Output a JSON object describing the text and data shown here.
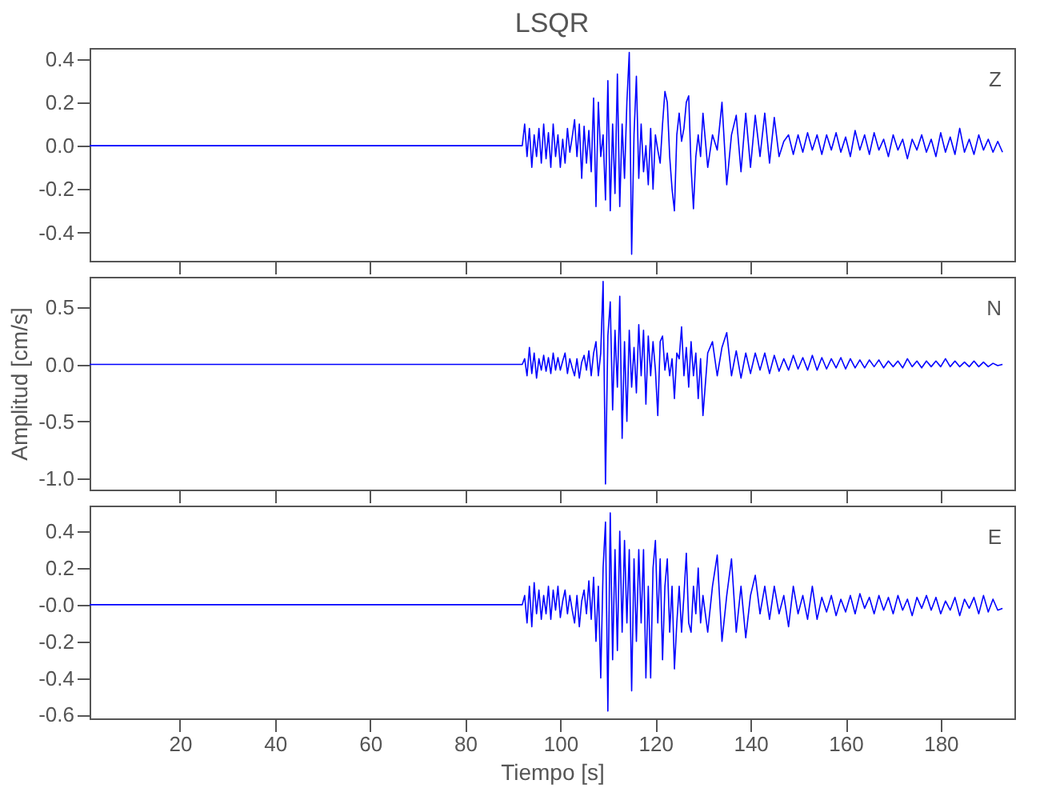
{
  "chart_data": [
    {
      "type": "line",
      "title": "LSQR",
      "annotations": [
        "Z"
      ],
      "tick_labels": "y",
      "xlim": [
        1,
        195.5
      ],
      "xticks": [
        20,
        40,
        60,
        80,
        100,
        120,
        140,
        160,
        180
      ],
      "ylim": [
        -0.53,
        0.45
      ],
      "yticks": [
        {
          "value": -0.4,
          "label": "-0.4"
        },
        {
          "value": -0.2,
          "label": "-0.2"
        },
        {
          "value": 0,
          "label": "0.0"
        },
        {
          "value": 0.2,
          "label": "0.2"
        },
        {
          "value": 0.4,
          "label": "0.4"
        }
      ],
      "x": [
        1,
        30,
        60,
        92,
        92.5,
        93,
        93.5,
        94,
        94.5,
        95,
        95.5,
        96,
        96.5,
        97,
        97.5,
        98,
        98.5,
        99,
        99.5,
        100,
        100.5,
        101,
        101.5,
        102,
        102.5,
        103,
        103.5,
        104,
        104.5,
        105,
        105.5,
        106,
        106.5,
        107,
        107.5,
        108,
        108.5,
        109,
        109.5,
        110,
        110.5,
        111,
        111.5,
        112,
        112.5,
        113,
        113.5,
        114,
        114.5,
        115,
        115.5,
        116,
        116.5,
        117,
        117.5,
        118,
        118.5,
        119,
        119.5,
        120,
        120.5,
        121,
        121.5,
        122,
        122.5,
        123,
        123.5,
        124,
        124.5,
        125,
        125.5,
        126,
        126.5,
        127,
        127.5,
        128,
        128.5,
        129,
        129.5,
        130,
        131,
        132,
        133,
        134,
        135,
        136,
        137,
        138,
        139,
        140,
        141,
        142,
        143,
        144,
        145,
        146,
        147,
        148,
        149,
        150,
        151,
        152,
        153,
        154,
        155,
        156,
        157,
        158,
        159,
        160,
        161,
        162,
        163,
        164,
        165,
        166,
        167,
        168,
        169,
        170,
        171,
        172,
        173,
        174,
        175,
        176,
        177,
        178,
        179,
        180,
        181,
        182,
        183,
        184,
        185,
        186,
        187,
        188,
        189,
        190,
        191,
        192,
        193
      ],
      "series": [
        {
          "color": "#0000ff",
          "values": [
            0,
            0,
            0,
            0,
            0.1,
            -0.05,
            0.08,
            -0.1,
            0.05,
            -0.05,
            0.08,
            -0.08,
            0.1,
            -0.06,
            0.06,
            -0.1,
            0.1,
            -0.05,
            0.05,
            -0.1,
            0.03,
            -0.08,
            0.08,
            -0.03,
            0.04,
            0.12,
            -0.05,
            0.1,
            -0.15,
            0.09,
            -0.08,
            0.07,
            -0.12,
            0.22,
            -0.28,
            0.2,
            -0.05,
            0.05,
            -0.25,
            0.3,
            -0.3,
            0.1,
            -0.22,
            0.33,
            -0.28,
            0.1,
            -0.15,
            0.2,
            0.43,
            -0.5,
            0.05,
            0.32,
            -0.15,
            0.1,
            -0.12,
            0,
            -0.18,
            0.08,
            -0.2,
            0.05,
            -0.02,
            -0.08,
            0.1,
            0.25,
            0.2,
            -0.05,
            -0.2,
            -0.3,
            0.05,
            0.15,
            0.02,
            0.08,
            0.2,
            0.23,
            -0.1,
            -0.29,
            -0.05,
            0.05,
            -0.05,
            0.15,
            -0.1,
            0.05,
            -0.02,
            0.2,
            -0.18,
            0.05,
            0.14,
            -0.12,
            0.15,
            -0.1,
            0.14,
            -0.05,
            0.15,
            -0.08,
            0.13,
            -0.05,
            0.02,
            0.05,
            -0.04,
            0.05,
            -0.03,
            0.06,
            -0.02,
            0.05,
            -0.04,
            0.05,
            -0.02,
            0.06,
            -0.03,
            0.04,
            -0.05,
            0.07,
            -0.02,
            0.05,
            -0.04,
            0.06,
            -0.02,
            0.03,
            -0.05,
            0.05,
            -0.02,
            0.03,
            -0.06,
            0.03,
            -0.02,
            0.05,
            -0.03,
            0.03,
            -0.05,
            0.06,
            -0.03,
            0.04,
            -0.04,
            0.08,
            -0.03,
            0.03,
            -0.04,
            0.05,
            -0.02,
            0.03,
            -0.03,
            0.02,
            -0.03
          ]
        }
      ]
    },
    {
      "type": "line",
      "ylabel": "Amplitud [cm/s]",
      "annotations": [
        "N"
      ],
      "tick_labels": "y",
      "xlim": [
        1,
        195.5
      ],
      "xticks": [
        20,
        40,
        60,
        80,
        100,
        120,
        140,
        160,
        180
      ],
      "ylim": [
        -1.1,
        0.77
      ],
      "yticks": [
        {
          "value": -1,
          "label": "-1.0"
        },
        {
          "value": -0.5,
          "label": "-0.5"
        },
        {
          "value": 0,
          "label": "0.0"
        },
        {
          "value": 0.5,
          "label": "0.5"
        }
      ],
      "x": [
        1,
        30,
        60,
        92,
        92.5,
        93,
        93.5,
        94,
        94.5,
        95,
        95.5,
        96,
        96.5,
        97,
        97.5,
        98,
        98.5,
        99,
        99.5,
        100,
        100.5,
        101,
        101.5,
        102,
        102.5,
        103,
        103.5,
        104,
        104.5,
        105,
        105.5,
        106,
        106.5,
        107,
        107.5,
        108,
        108.5,
        109,
        109.5,
        110,
        110.5,
        111,
        111.5,
        112,
        112.5,
        113,
        113.5,
        114,
        114.5,
        115,
        115.5,
        116,
        116.5,
        117,
        117.5,
        118,
        118.5,
        119,
        119.5,
        120,
        120.5,
        121,
        121.5,
        122,
        122.5,
        123,
        123.5,
        124,
        124.5,
        125,
        125.5,
        126,
        126.5,
        127,
        127.5,
        128,
        128.5,
        129,
        129.5,
        130,
        131,
        132,
        133,
        134,
        135,
        136,
        137,
        138,
        139,
        140,
        141,
        142,
        143,
        144,
        145,
        146,
        147,
        148,
        149,
        150,
        151,
        152,
        153,
        154,
        155,
        156,
        157,
        158,
        159,
        160,
        161,
        162,
        163,
        164,
        165,
        166,
        167,
        168,
        169,
        170,
        171,
        172,
        173,
        174,
        175,
        176,
        177,
        178,
        179,
        180,
        181,
        182,
        183,
        184,
        185,
        186,
        187,
        188,
        189,
        190,
        191,
        192,
        193
      ],
      "series": [
        {
          "color": "#0000ff",
          "values": [
            0,
            0,
            0,
            0,
            0.05,
            -0.1,
            0.15,
            -0.08,
            0.1,
            -0.12,
            0.05,
            -0.05,
            0.08,
            -0.06,
            0.06,
            -0.08,
            0.1,
            -0.05,
            0.06,
            -0.05,
            0.03,
            0.1,
            -0.08,
            0.05,
            -0.03,
            -0.1,
            0.05,
            -0.12,
            0.02,
            0.08,
            -0.05,
            0.12,
            -0.1,
            0.1,
            0.2,
            -0.1,
            0.1,
            0.73,
            -1.05,
            0.25,
            0.55,
            -0.4,
            0.3,
            -0.2,
            0.6,
            -0.65,
            0.2,
            -0.5,
            0.3,
            -0.2,
            0.15,
            -0.25,
            0.35,
            -0.1,
            0.3,
            -0.35,
            0.25,
            -0.1,
            0.2,
            -0.05,
            -0.45,
            0.2,
            0.25,
            -0.05,
            0.1,
            -0.1,
            0.05,
            -0.3,
            0.1,
            0.05,
            0.33,
            -0.1,
            0.15,
            -0.2,
            0.2,
            -0.1,
            0.1,
            -0.3,
            0.05,
            -0.45,
            0.1,
            0.2,
            -0.1,
            0.15,
            0.28,
            -0.1,
            0.12,
            -0.12,
            0.1,
            -0.08,
            0.1,
            -0.05,
            0.1,
            -0.08,
            0.08,
            -0.06,
            0.05,
            -0.05,
            0.08,
            -0.04,
            0.06,
            -0.05,
            0.08,
            -0.05,
            0.06,
            -0.04,
            0.05,
            -0.03,
            0.06,
            -0.04,
            0.05,
            -0.03,
            0.04,
            -0.03,
            0.04,
            -0.02,
            0.04,
            -0.03,
            0.03,
            -0.02,
            0.03,
            -0.03,
            0.05,
            -0.02,
            0.03,
            -0.03,
            0.03,
            -0.02,
            0.03,
            -0.02,
            0.05,
            -0.02,
            0.03,
            -0.02,
            0.02,
            -0.02,
            0.03,
            -0.02,
            0.02,
            -0.02,
            0.01,
            -0.01,
            0
          ]
        }
      ]
    },
    {
      "type": "line",
      "xlabel": "Tiempo [s]",
      "annotations": [
        "E"
      ],
      "xlim": [
        1,
        195.5
      ],
      "xticks": [
        20,
        40,
        60,
        80,
        100,
        120,
        140,
        160,
        180
      ],
      "ylim": [
        -0.62,
        0.54
      ],
      "yticks": [
        {
          "value": -0.6,
          "label": "-0.6"
        },
        {
          "value": -0.4,
          "label": "-0.4"
        },
        {
          "value": -0.2,
          "label": "-0.2"
        },
        {
          "value": 0,
          "label": "-0.0"
        },
        {
          "value": 0.2,
          "label": "0.2"
        },
        {
          "value": 0.4,
          "label": "0.4"
        }
      ],
      "x": [
        1,
        30,
        60,
        92,
        92.5,
        93,
        93.5,
        94,
        94.5,
        95,
        95.5,
        96,
        96.5,
        97,
        97.5,
        98,
        98.5,
        99,
        99.5,
        100,
        100.5,
        101,
        101.5,
        102,
        102.5,
        103,
        103.5,
        104,
        104.5,
        105,
        105.5,
        106,
        106.5,
        107,
        107.5,
        108,
        108.5,
        109,
        109.5,
        110,
        110.5,
        111,
        111.5,
        112,
        112.5,
        113,
        113.5,
        114,
        114.5,
        115,
        115.5,
        116,
        116.5,
        117,
        117.5,
        118,
        118.5,
        119,
        119.5,
        120,
        120.5,
        121,
        121.5,
        122,
        122.5,
        123,
        123.5,
        124,
        124.5,
        125,
        125.5,
        126,
        126.5,
        127,
        127.5,
        128,
        128.5,
        129,
        129.5,
        130,
        131,
        132,
        133,
        134,
        135,
        136,
        137,
        138,
        139,
        140,
        141,
        142,
        143,
        144,
        145,
        146,
        147,
        148,
        149,
        150,
        151,
        152,
        153,
        154,
        155,
        156,
        157,
        158,
        159,
        160,
        161,
        162,
        163,
        164,
        165,
        166,
        167,
        168,
        169,
        170,
        171,
        172,
        173,
        174,
        175,
        176,
        177,
        178,
        179,
        180,
        181,
        182,
        183,
        184,
        185,
        186,
        187,
        188,
        189,
        190,
        191,
        192,
        193
      ],
      "series": [
        {
          "color": "#0000ff",
          "values": [
            0,
            0,
            0,
            0,
            0.05,
            -0.1,
            0.1,
            -0.12,
            0.12,
            -0.05,
            0.08,
            -0.08,
            0.05,
            -0.05,
            0.1,
            -0.08,
            0.08,
            -0.03,
            0.1,
            -0.07,
            0.02,
            0.08,
            -0.05,
            0.05,
            -0.03,
            -0.1,
            0.05,
            -0.12,
            0.02,
            0.08,
            -0.05,
            0.13,
            -0.08,
            0.15,
            -0.2,
            0.1,
            -0.4,
            0.2,
            0.45,
            -0.58,
            0.5,
            -0.3,
            0.3,
            -0.25,
            0.4,
            -0.15,
            0.35,
            -0.1,
            0.3,
            -0.47,
            0.25,
            -0.2,
            0.3,
            -0.1,
            0.3,
            -0.4,
            0.1,
            -0.4,
            0.2,
            0.35,
            -0.1,
            0.25,
            -0.3,
            0.1,
            0.25,
            -0.15,
            0.1,
            -0.35,
            -0.1,
            0.1,
            -0.15,
            0.05,
            0.28,
            -0.1,
            -0.15,
            0.1,
            -0.05,
            0.2,
            -0.1,
            0.05,
            -0.15,
            0.1,
            0.27,
            -0.2,
            0.05,
            0.25,
            -0.15,
            0.1,
            -0.18,
            0.05,
            0.16,
            -0.05,
            0.1,
            -0.08,
            0.1,
            -0.05,
            0.05,
            -0.12,
            0.1,
            -0.05,
            0.05,
            -0.08,
            0.1,
            -0.08,
            0.04,
            -0.04,
            0.05,
            -0.06,
            0.03,
            -0.04,
            0.05,
            -0.05,
            0.06,
            -0.02,
            0.04,
            -0.05,
            0.05,
            -0.03,
            0.04,
            -0.05,
            0.05,
            -0.03,
            0.03,
            -0.06,
            0.04,
            -0.02,
            0.05,
            -0.03,
            0.04,
            -0.05,
            0.02,
            -0.03,
            0.04,
            -0.06,
            0.03,
            -0.02,
            0.04,
            -0.05,
            0.05,
            -0.04,
            0.03,
            -0.03,
            -0.02
          ]
        }
      ]
    }
  ]
}
